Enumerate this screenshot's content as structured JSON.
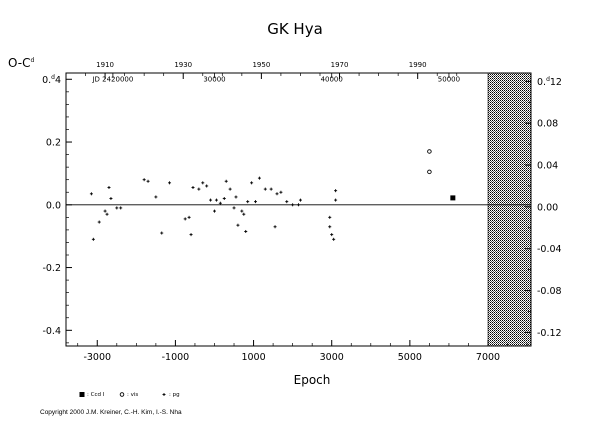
{
  "chart_data": {
    "type": "scatter",
    "title": "GK  Hya",
    "ylabel": "O-C",
    "ylabel_superscript": "d",
    "xlabel": "Epoch",
    "xlim": [
      -3800,
      8100
    ],
    "ylim": [
      -0.45,
      0.42
    ],
    "y2lim": [
      -0.133,
      0.128
    ],
    "x_ticks": [
      "-3000",
      "-1000",
      "1000",
      "3000",
      "5000",
      "7000"
    ],
    "x_tick_values": [
      -3000,
      -1000,
      1000,
      3000,
      5000,
      7000
    ],
    "y_ticks": [
      "-0.4",
      "-0.2",
      "0.0",
      "0.2"
    ],
    "y_tick_values": [
      -0.4,
      -0.2,
      0.0,
      0.2
    ],
    "y_top_tick": {
      "value": 0.4,
      "label": "0.4",
      "superscript": "d"
    },
    "y2_ticks": [
      "-0.12",
      "-0.08",
      "-0.04",
      "0.00",
      "0.04",
      "0.08"
    ],
    "y2_tick_values": [
      -0.12,
      -0.08,
      -0.04,
      0.0,
      0.04,
      0.08
    ],
    "y2_top_tick": {
      "value": 0.12,
      "label": "0.12",
      "superscript": "d"
    },
    "top_year_labels": [
      "1910",
      "1930",
      "1950",
      "1970",
      "1990"
    ],
    "top_year_epochs": [
      -2800,
      -800,
      1200,
      3200,
      5200
    ],
    "jd_labels": [
      "JD  2420000",
      "30000",
      "40000",
      "50000"
    ],
    "jd_label_epochs": [
      -2600,
      0,
      3000,
      6000
    ],
    "hatched_region": {
      "x_from": 7000,
      "x_to": 8100
    },
    "series": [
      {
        "marker": "plus",
        "points": [
          [
            -3150,
            0.035
          ],
          [
            -3100,
            -0.11
          ],
          [
            -2950,
            -0.055
          ],
          [
            -2800,
            -0.02
          ],
          [
            -2750,
            -0.03
          ],
          [
            -2700,
            0.055
          ],
          [
            -2650,
            0.02
          ],
          [
            -2500,
            -0.01
          ],
          [
            -2400,
            -0.01
          ],
          [
            -1800,
            0.08
          ],
          [
            -1700,
            0.075
          ],
          [
            -1500,
            0.025
          ],
          [
            -1350,
            -0.09
          ],
          [
            -1150,
            0.07
          ],
          [
            -750,
            -0.045
          ],
          [
            -650,
            -0.04
          ],
          [
            -600,
            -0.095
          ],
          [
            -550,
            0.055
          ],
          [
            -400,
            0.05
          ],
          [
            -300,
            0.07
          ],
          [
            -200,
            0.06
          ],
          [
            -100,
            0.015
          ],
          [
            0,
            -0.02
          ],
          [
            50,
            0.015
          ],
          [
            150,
            0.005
          ],
          [
            250,
            0.02
          ],
          [
            300,
            0.075
          ],
          [
            400,
            0.05
          ],
          [
            500,
            -0.01
          ],
          [
            550,
            0.025
          ],
          [
            600,
            -0.065
          ],
          [
            700,
            -0.02
          ],
          [
            750,
            -0.03
          ],
          [
            800,
            -0.085
          ],
          [
            850,
            0.01
          ],
          [
            950,
            0.07
          ],
          [
            1050,
            0.01
          ],
          [
            1150,
            0.085
          ],
          [
            1300,
            0.05
          ],
          [
            1450,
            0.05
          ],
          [
            1550,
            -0.07
          ],
          [
            1600,
            0.035
          ],
          [
            1700,
            0.04
          ],
          [
            1850,
            0.01
          ],
          [
            2000,
            0.0
          ],
          [
            2150,
            0.0
          ],
          [
            2200,
            0.015
          ],
          [
            2950,
            -0.04
          ],
          [
            2950,
            -0.07
          ],
          [
            3000,
            -0.095
          ],
          [
            3050,
            -0.11
          ],
          [
            3100,
            0.045
          ],
          [
            3100,
            0.015
          ]
        ]
      },
      {
        "marker": "open-circle",
        "points": [
          [
            5500,
            0.17
          ],
          [
            5500,
            0.105
          ]
        ]
      },
      {
        "marker": "filled-square",
        "points": [
          [
            6100,
            0.022
          ]
        ]
      }
    ],
    "legend": [
      {
        "marker": "filled-square",
        "label": ": Ccd I"
      },
      {
        "marker": "open-circle",
        "label": ": vis"
      },
      {
        "marker": "plus",
        "label": ": pg"
      }
    ]
  },
  "copyright": "Copyright 2000 J.M. Kreiner, C.-H. Kim, I.-S. Nha"
}
